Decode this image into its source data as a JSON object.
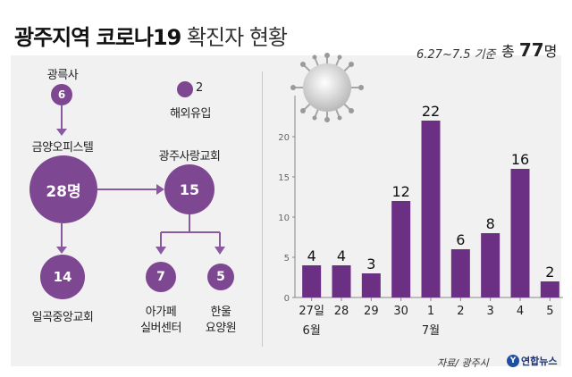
{
  "header": {
    "title_bold": "광주지역 코로나19",
    "title_rest": "확진자 현황"
  },
  "summary": {
    "period": "6.27~7.5 기준",
    "total_prefix": "총",
    "total_value": "77",
    "total_unit": "명"
  },
  "cluster": {
    "gwangreuksa": {
      "label": "광륵사",
      "count": "6"
    },
    "overseas": {
      "label": "해외유입",
      "count": "2"
    },
    "geumyang": {
      "label": "금양오피스텔",
      "count": "28명"
    },
    "sarang": {
      "label": "광주사랑교회",
      "count": "15"
    },
    "ilgok": {
      "label": "일곡중앙교회",
      "count": "14"
    },
    "agape": {
      "label_line1": "아가페",
      "label_line2": "실버센터",
      "count": "7"
    },
    "hanul": {
      "label_line1": "한울",
      "label_line2": "요양원",
      "count": "5"
    }
  },
  "chart_data": {
    "type": "bar",
    "categories": [
      "27일",
      "28",
      "29",
      "30",
      "1",
      "2",
      "3",
      "4",
      "5"
    ],
    "values": [
      4,
      4,
      3,
      12,
      22,
      6,
      8,
      16,
      2
    ],
    "month_labels": [
      "6월",
      "7월"
    ],
    "yticks": [
      0,
      5,
      10,
      15,
      20
    ],
    "ylim": [
      0,
      24
    ],
    "bar_color": "#6b2f83",
    "grid": false
  },
  "footer": {
    "source": "자료/ 광주시",
    "logo_text": "연합뉴스"
  },
  "colors": {
    "accent": "#7e4791",
    "bar": "#6b2f83"
  }
}
